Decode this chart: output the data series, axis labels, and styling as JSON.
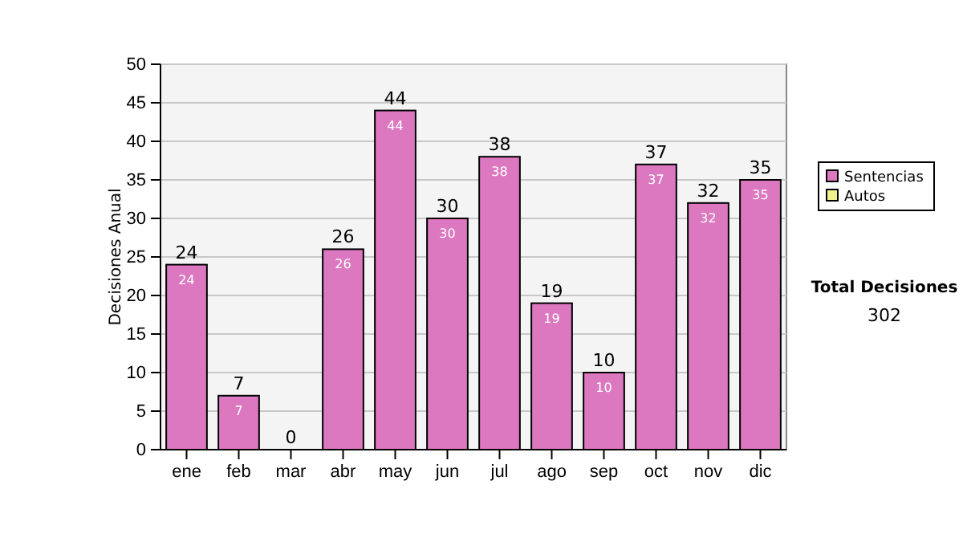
{
  "chart_data": {
    "type": "bar",
    "ylabel": "Decisiones Anual",
    "categories": [
      "ene",
      "feb",
      "mar",
      "abr",
      "may",
      "jun",
      "jul",
      "ago",
      "sep",
      "oct",
      "nov",
      "dic"
    ],
    "series": [
      {
        "name": "Sentencias",
        "color": "#dc78c0",
        "values": [
          24,
          7,
          0,
          26,
          44,
          30,
          38,
          19,
          10,
          37,
          32,
          35
        ],
        "value_labels": [
          "24",
          "7",
          null,
          "26",
          "44",
          "30",
          "38",
          "19",
          "10",
          "37",
          "32",
          "35"
        ]
      },
      {
        "name": "Autos",
        "color": "#f0f08c",
        "values": [
          0,
          0,
          0,
          0,
          0,
          0,
          0,
          0,
          0,
          0,
          0,
          0
        ]
      }
    ],
    "stacked": true,
    "totals": [
      "24",
      "7",
      "0",
      "26",
      "44",
      "30",
      "38",
      "19",
      "10",
      "37",
      "32",
      "35"
    ],
    "ylim": [
      0,
      50
    ],
    "yticks": [
      0,
      5,
      10,
      15,
      20,
      25,
      30,
      35,
      40,
      45,
      50
    ],
    "grid": "y",
    "legend": "right",
    "annotations": [
      "Total Decisiones",
      "302"
    ]
  }
}
